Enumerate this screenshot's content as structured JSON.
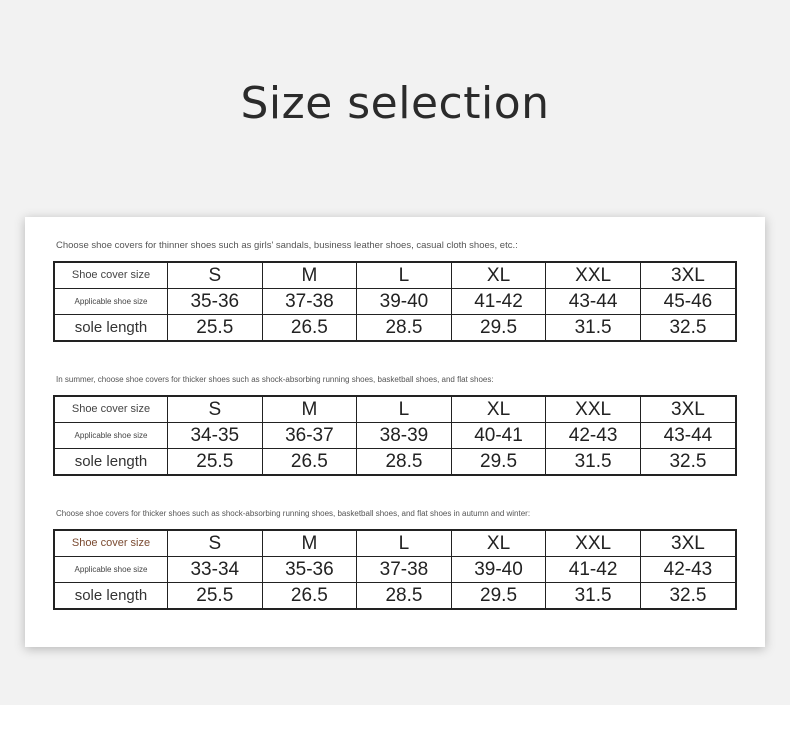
{
  "title": "Size selection",
  "row_labels": {
    "cover": "Shoe cover size",
    "applicable": "Applicable shoe size",
    "sole": "sole length"
  },
  "sections": [
    {
      "caption": "Choose shoe covers for thinner shoes such as girls' sandals, business leather shoes, casual cloth shoes, etc.:",
      "sizes": [
        "S",
        "M",
        "L",
        "XL",
        "XXL",
        "3XL"
      ],
      "applicable": [
        "35-36",
        "37-38",
        "39-40",
        "41-42",
        "43-44",
        "45-46"
      ],
      "sole": [
        "25.5",
        "26.5",
        "28.5",
        "29.5",
        "31.5",
        "32.5"
      ]
    },
    {
      "caption": "In summer, choose shoe covers for thicker shoes such as shock-absorbing running shoes, basketball shoes, and flat shoes:",
      "sizes": [
        "S",
        "M",
        "L",
        "XL",
        "XXL",
        "3XL"
      ],
      "applicable": [
        "34-35",
        "36-37",
        "38-39",
        "40-41",
        "42-43",
        "43-44"
      ],
      "sole": [
        "25.5",
        "26.5",
        "28.5",
        "29.5",
        "31.5",
        "32.5"
      ]
    },
    {
      "caption": "Choose shoe covers for thicker shoes such as shock-absorbing running shoes, basketball shoes, and flat shoes in autumn and winter:",
      "sizes": [
        "S",
        "M",
        "L",
        "XL",
        "XXL",
        "3XL"
      ],
      "applicable": [
        "33-34",
        "35-36",
        "37-38",
        "39-40",
        "41-42",
        "42-43"
      ],
      "sole": [
        "25.5",
        "26.5",
        "28.5",
        "29.5",
        "31.5",
        "32.5"
      ]
    }
  ]
}
